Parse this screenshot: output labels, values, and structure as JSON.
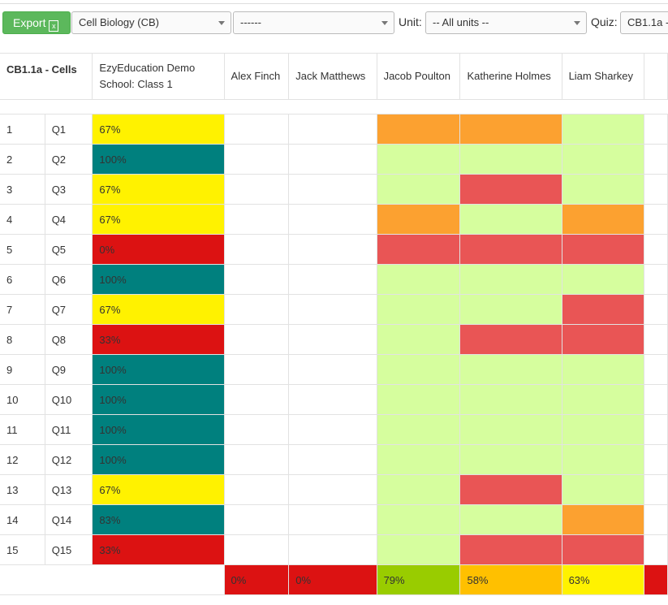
{
  "toolbar": {
    "export": "Export",
    "subject": "Cell Biology (CB)",
    "filter": "------",
    "unit_label": "Unit:",
    "unit": "-- All units --",
    "quiz_label": "Quiz:",
    "quiz": "CB1.1a -"
  },
  "table": {
    "title": "CB1.1a - Cells",
    "class_name": "EzyEducation Demo School: Class 1",
    "students": [
      "Alex Finch",
      "Jack Matthews",
      "Jacob Poulton",
      "Katherine Holmes",
      "Liam Sharkey"
    ],
    "rows": [
      {
        "number": "1",
        "question": "Q1",
        "class_score": "67%",
        "class_color": "#fff200",
        "student_colors": [
          "#ffffff",
          "#ffffff",
          "#fca130",
          "#fca130",
          "#d6fe9e"
        ]
      },
      {
        "number": "2",
        "question": "Q2",
        "class_score": "100%",
        "class_color": "#00807e",
        "student_colors": [
          "#ffffff",
          "#ffffff",
          "#d6fe9e",
          "#d6fe9e",
          "#d6fe9e"
        ]
      },
      {
        "number": "3",
        "question": "Q3",
        "class_score": "67%",
        "class_color": "#fff200",
        "student_colors": [
          "#ffffff",
          "#ffffff",
          "#d6fe9e",
          "#e95555",
          "#d6fe9e"
        ]
      },
      {
        "number": "4",
        "question": "Q4",
        "class_score": "67%",
        "class_color": "#fff200",
        "student_colors": [
          "#ffffff",
          "#ffffff",
          "#fca130",
          "#d6fe9e",
          "#fca130"
        ]
      },
      {
        "number": "5",
        "question": "Q5",
        "class_score": "0%",
        "class_color": "#dc1212",
        "student_colors": [
          "#ffffff",
          "#ffffff",
          "#e95555",
          "#e95555",
          "#e95555"
        ]
      },
      {
        "number": "6",
        "question": "Q6",
        "class_score": "100%",
        "class_color": "#00807e",
        "student_colors": [
          "#ffffff",
          "#ffffff",
          "#d6fe9e",
          "#d6fe9e",
          "#d6fe9e"
        ]
      },
      {
        "number": "7",
        "question": "Q7",
        "class_score": "67%",
        "class_color": "#fff200",
        "student_colors": [
          "#ffffff",
          "#ffffff",
          "#d6fe9e",
          "#d6fe9e",
          "#e95555"
        ]
      },
      {
        "number": "8",
        "question": "Q8",
        "class_score": "33%",
        "class_color": "#dc1212",
        "student_colors": [
          "#ffffff",
          "#ffffff",
          "#d6fe9e",
          "#e95555",
          "#e95555"
        ]
      },
      {
        "number": "9",
        "question": "Q9",
        "class_score": "100%",
        "class_color": "#00807e",
        "student_colors": [
          "#ffffff",
          "#ffffff",
          "#d6fe9e",
          "#d6fe9e",
          "#d6fe9e"
        ]
      },
      {
        "number": "10",
        "question": "Q10",
        "class_score": "100%",
        "class_color": "#00807e",
        "student_colors": [
          "#ffffff",
          "#ffffff",
          "#d6fe9e",
          "#d6fe9e",
          "#d6fe9e"
        ]
      },
      {
        "number": "11",
        "question": "Q11",
        "class_score": "100%",
        "class_color": "#00807e",
        "student_colors": [
          "#ffffff",
          "#ffffff",
          "#d6fe9e",
          "#d6fe9e",
          "#d6fe9e"
        ]
      },
      {
        "number": "12",
        "question": "Q12",
        "class_score": "100%",
        "class_color": "#00807e",
        "student_colors": [
          "#ffffff",
          "#ffffff",
          "#d6fe9e",
          "#d6fe9e",
          "#d6fe9e"
        ]
      },
      {
        "number": "13",
        "question": "Q13",
        "class_score": "67%",
        "class_color": "#fff200",
        "student_colors": [
          "#ffffff",
          "#ffffff",
          "#d6fe9e",
          "#e95555",
          "#d6fe9e"
        ]
      },
      {
        "number": "14",
        "question": "Q14",
        "class_score": "83%",
        "class_color": "#00807e",
        "student_colors": [
          "#ffffff",
          "#ffffff",
          "#d6fe9e",
          "#d6fe9e",
          "#fca130"
        ]
      },
      {
        "number": "15",
        "question": "Q15",
        "class_score": "33%",
        "class_color": "#dc1212",
        "student_colors": [
          "#ffffff",
          "#ffffff",
          "#d6fe9e",
          "#e95555",
          "#e95555"
        ]
      }
    ],
    "footer": [
      {
        "score": "0%",
        "color": "#dc1212"
      },
      {
        "score": "0%",
        "color": "#dc1212"
      },
      {
        "score": "79%",
        "color": "#99cc00"
      },
      {
        "score": "58%",
        "color": "#ffc000"
      },
      {
        "score": "63%",
        "color": "#fff200"
      }
    ]
  }
}
